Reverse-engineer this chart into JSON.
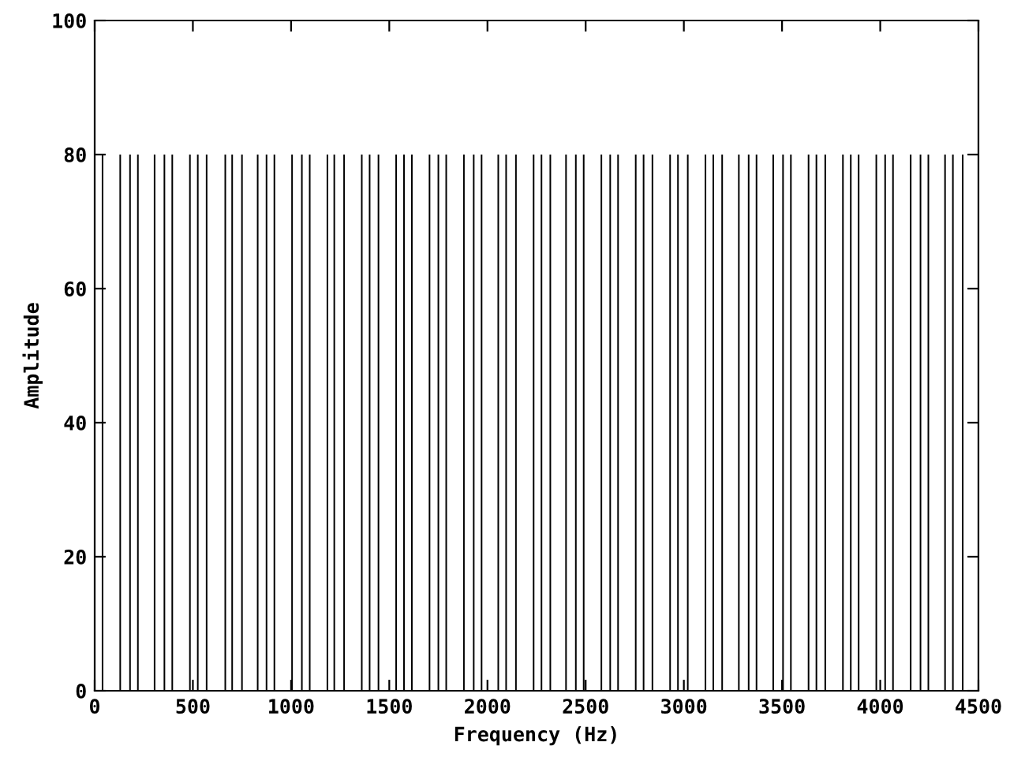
{
  "chart_data": {
    "type": "bar",
    "xlabel": "Frequency (Hz)",
    "ylabel": "Amplitude",
    "x": [
      40,
      130,
      180,
      220,
      305,
      355,
      395,
      485,
      525,
      570,
      665,
      700,
      750,
      830,
      875,
      915,
      1005,
      1055,
      1095,
      1185,
      1220,
      1270,
      1360,
      1400,
      1445,
      1535,
      1575,
      1615,
      1705,
      1750,
      1790,
      1880,
      1930,
      1970,
      2055,
      2095,
      2145,
      2235,
      2275,
      2320,
      2400,
      2450,
      2490,
      2580,
      2625,
      2665,
      2755,
      2795,
      2840,
      2930,
      2970,
      3020,
      3110,
      3150,
      3195,
      3280,
      3330,
      3370,
      3455,
      3505,
      3545,
      3635,
      3675,
      3720,
      3810,
      3850,
      3890,
      3980,
      4025,
      4065,
      4155,
      4205,
      4245,
      4330,
      4370,
      4420
    ],
    "values": [
      80,
      80,
      80,
      80,
      80,
      80,
      80,
      80,
      80,
      80,
      80,
      80,
      80,
      80,
      80,
      80,
      80,
      80,
      80,
      80,
      80,
      80,
      80,
      80,
      80,
      80,
      80,
      80,
      80,
      80,
      80,
      80,
      80,
      80,
      80,
      80,
      80,
      80,
      80,
      80,
      80,
      80,
      80,
      80,
      80,
      80,
      80,
      80,
      80,
      80,
      80,
      80,
      80,
      80,
      80,
      80,
      80,
      80,
      80,
      80,
      80,
      80,
      80,
      80,
      80,
      80,
      80,
      80,
      80,
      80,
      80,
      80,
      80,
      80,
      80,
      80
    ],
    "color": "#000000",
    "xlim": [
      0,
      4500
    ],
    "xticks": [
      0,
      500,
      1000,
      1500,
      2000,
      2500,
      3000,
      3500,
      4000,
      4500
    ],
    "ylim": [
      0,
      100
    ],
    "yticks": [
      0,
      20,
      40,
      60,
      80,
      100
    ],
    "grid": false
  }
}
